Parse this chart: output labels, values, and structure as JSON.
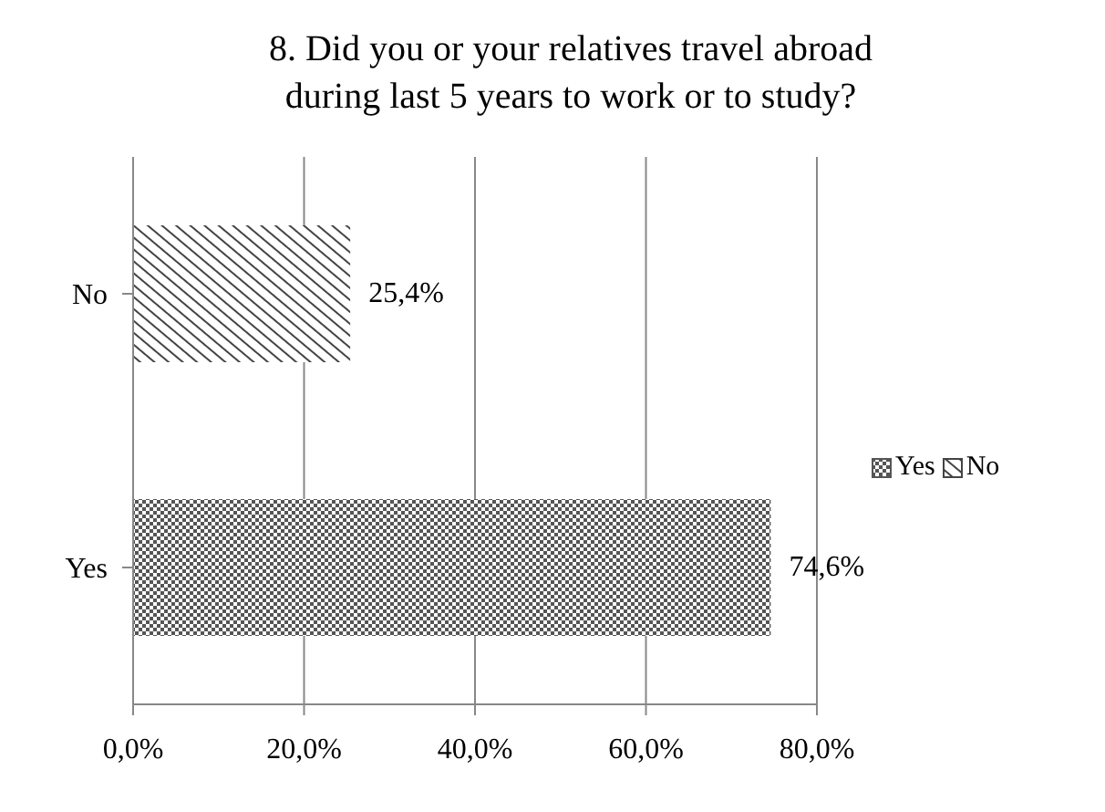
{
  "chart_data": {
    "type": "bar",
    "orientation": "horizontal",
    "stacked": true,
    "title": "8. Did you or your relatives travel abroad during last 5 years to work or to study?",
    "categories": [
      "No",
      "Yes"
    ],
    "series": [
      {
        "name": "Yes",
        "color": "#555555",
        "values": [
          null,
          74.6
        ],
        "value_labels": [
          null,
          "74,6%"
        ]
      },
      {
        "name": "No",
        "color": "#444444",
        "values": [
          25.4,
          null
        ],
        "value_labels": [
          "25,4%",
          null
        ]
      }
    ],
    "xlim": [
      0,
      80
    ],
    "xticks": [
      {
        "value": 0,
        "label": "0,0%"
      },
      {
        "value": 20,
        "label": "20,0%"
      },
      {
        "value": 40,
        "label": "40,0%"
      },
      {
        "value": 60,
        "label": "60,0%"
      },
      {
        "value": 80,
        "label": "80,0%"
      }
    ],
    "grid": "x",
    "legend": "right"
  }
}
